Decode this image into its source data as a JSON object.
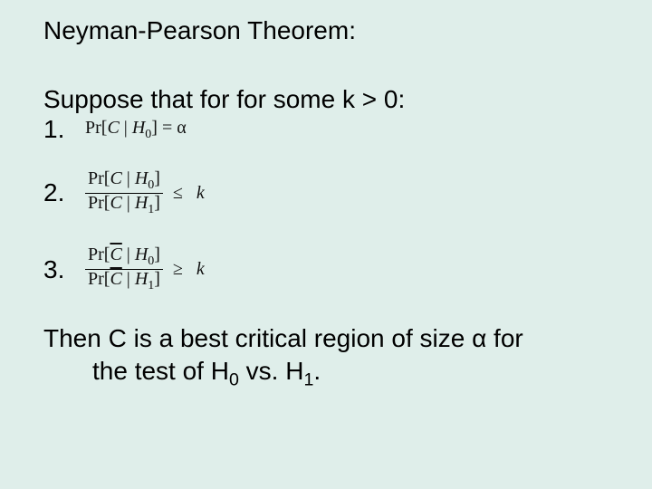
{
  "background_color": "#dfeeea",
  "text_color": "#000000",
  "body_font_family": "Arial",
  "formula_font_family": "Times New Roman",
  "title_fontsize": 28,
  "body_fontsize": 28,
  "formula_fontsize": 20,
  "title": "Neyman-Pearson Theorem:",
  "intro": "Suppose that for for some k > 0:",
  "items": [
    {
      "num": "1.",
      "formula_plain": "Pr[C | H0] = α",
      "type": "inline",
      "lhs": "Pr[<i>C</i> | <i>H</i><sub>0</sub>]",
      "relation": "=",
      "rhs": "α"
    },
    {
      "num": "2.",
      "formula_plain": "Pr[C | H0] / Pr[C | H1] ≤ k",
      "type": "fraction",
      "top": "Pr[<i>C</i> | <i>H</i><sub>0</sub>]",
      "bot": "Pr[<i>C</i> | <i>H</i><sub>1</sub>]",
      "relation": "≤",
      "rhs": "<i>k</i>"
    },
    {
      "num": "3.",
      "formula_plain": "Pr[C̄ | H0] / Pr[C̄ | H1] ≥ k",
      "type": "fraction",
      "top": "Pr[<span class=\"overline\"><i>C</i></span> | <i>H</i><sub>0</sub>]",
      "bot": "Pr[<span class=\"overline\"><i>C</i></span> | <i>H</i><sub>1</sub>]",
      "relation": "≥",
      "rhs": "<i>k</i>"
    }
  ],
  "conclusion_line1": "Then C is a best critical region of size α for",
  "conclusion_line2_prefix": "the test of H",
  "conclusion_line2_sub0": "0",
  "conclusion_line2_mid": " vs. H",
  "conclusion_line2_sub1": "1",
  "conclusion_line2_suffix": "."
}
